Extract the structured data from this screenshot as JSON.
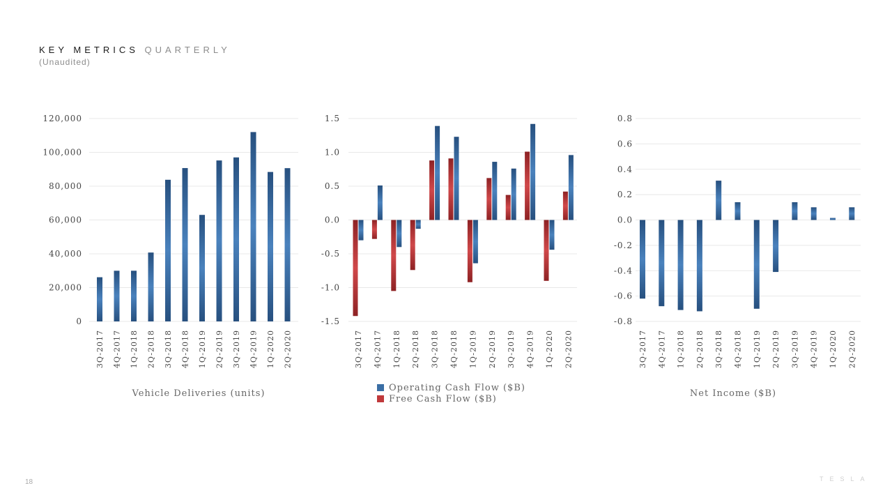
{
  "header": {
    "title": "KEY METRICS",
    "title_accent": "QUARTERLY",
    "subtitle": "(Unaudited)"
  },
  "page_number": "18",
  "logo_text": "TESLA",
  "colors": {
    "blue": "#3a6ea5",
    "red": "#c0393b",
    "grid": "#e8e8e8"
  },
  "legend": {
    "ocf": "Operating Cash Flow ($B)",
    "fcf": "Free Cash Flow ($B)"
  },
  "chart_data": [
    {
      "type": "bar",
      "title": "",
      "xlabel": "Vehicle Deliveries (units)",
      "ylabel": "",
      "categories": [
        "3Q-2017",
        "4Q-2017",
        "1Q-2018",
        "2Q-2018",
        "3Q-2018",
        "4Q-2018",
        "1Q-2019",
        "2Q-2019",
        "3Q-2019",
        "4Q-2019",
        "1Q-2020",
        "2Q-2020"
      ],
      "y_ticks": [
        "0",
        "20,000",
        "40,000",
        "60,000",
        "80,000",
        "100,000",
        "120,000"
      ],
      "ylim": [
        0,
        120000
      ],
      "series": [
        {
          "values": [
            26137,
            29967,
            29980,
            40740,
            83780,
            90700,
            63000,
            95200,
            97000,
            112000,
            88400,
            90650
          ]
        }
      ]
    },
    {
      "type": "bar",
      "title": "",
      "xlabel": "",
      "ylabel": "",
      "categories": [
        "3Q-2017",
        "4Q-2017",
        "1Q-2018",
        "2Q-2018",
        "3Q-2018",
        "4Q-2018",
        "1Q-2019",
        "2Q-2019",
        "3Q-2019",
        "4Q-2019",
        "1Q-2020",
        "2Q-2020"
      ],
      "y_ticks": [
        "-1.5",
        "-1.0",
        "-0.5",
        "0.0",
        "0.5",
        "1.0",
        "1.5"
      ],
      "ylim": [
        -1.5,
        1.5
      ],
      "series": [
        {
          "name": "Free Cash Flow ($B)",
          "values": [
            -1.42,
            -0.28,
            -1.05,
            -0.74,
            0.88,
            0.91,
            -0.92,
            0.62,
            0.37,
            1.01,
            -0.9,
            0.42
          ]
        },
        {
          "name": "Operating Cash Flow ($B)",
          "values": [
            -0.3,
            0.51,
            -0.4,
            -0.13,
            1.39,
            1.23,
            -0.64,
            0.86,
            0.76,
            1.42,
            -0.44,
            0.96
          ]
        }
      ]
    },
    {
      "type": "bar",
      "title": "",
      "xlabel": "Net Income ($B)",
      "ylabel": "",
      "categories": [
        "3Q-2017",
        "4Q-2017",
        "1Q-2018",
        "2Q-2018",
        "3Q-2018",
        "4Q-2018",
        "1Q-2019",
        "2Q-2019",
        "3Q-2019",
        "4Q-2019",
        "1Q-2020",
        "2Q-2020"
      ],
      "y_ticks": [
        "-0.8",
        "-0.6",
        "-0.4",
        "-0.2",
        "0.0",
        "0.2",
        "0.4",
        "0.6",
        "0.8"
      ],
      "ylim": [
        -0.8,
        0.8
      ],
      "series": [
        {
          "values": [
            -0.62,
            -0.68,
            -0.71,
            -0.72,
            0.31,
            0.14,
            -0.7,
            -0.41,
            0.14,
            0.1,
            0.016,
            0.1
          ]
        }
      ]
    }
  ]
}
